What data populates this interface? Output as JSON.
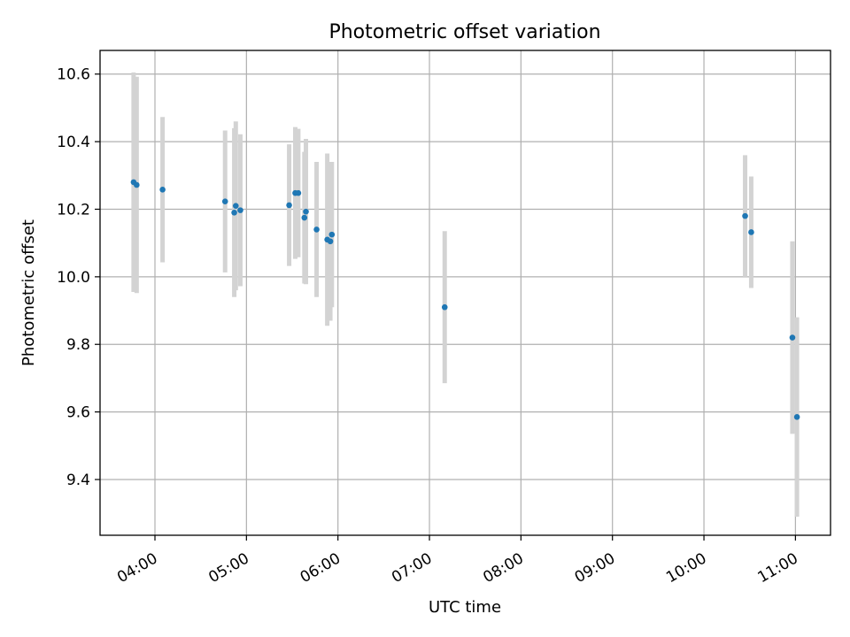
{
  "chart_data": {
    "type": "scatter",
    "title": "Photometric offset variation",
    "xlabel": "UTC time",
    "ylabel": "Photometric offset",
    "x_ticks": [
      "04:00",
      "05:00",
      "06:00",
      "07:00",
      "08:00",
      "09:00",
      "10:00",
      "11:00"
    ],
    "y_ticks": [
      "9.4",
      "9.6",
      "9.8",
      "10.0",
      "10.2",
      "10.4",
      "10.6"
    ],
    "xlim": [
      "03:24",
      "11:23"
    ],
    "ylim": [
      9.235,
      10.67
    ],
    "grid": true,
    "colors": {
      "point": "#1f77b4",
      "errorbar": "#d3d3d3"
    },
    "points": [
      {
        "x": "03:46",
        "y": 10.28,
        "yerr": 0.325
      },
      {
        "x": "03:48",
        "y": 10.272,
        "yerr": 0.32
      },
      {
        "x": "04:05",
        "y": 10.258,
        "yerr": 0.215
      },
      {
        "x": "04:46",
        "y": 10.223,
        "yerr": 0.21
      },
      {
        "x": "04:52",
        "y": 10.19,
        "yerr": 0.25
      },
      {
        "x": "04:53",
        "y": 10.21,
        "yerr": 0.25
      },
      {
        "x": "04:56",
        "y": 10.197,
        "yerr": 0.225
      },
      {
        "x": "05:28",
        "y": 10.212,
        "yerr": 0.18
      },
      {
        "x": "05:32",
        "y": 10.248,
        "yerr": 0.195
      },
      {
        "x": "05:34",
        "y": 10.248,
        "yerr": 0.19
      },
      {
        "x": "05:38",
        "y": 10.175,
        "yerr": 0.195
      },
      {
        "x": "05:39",
        "y": 10.193,
        "yerr": 0.215
      },
      {
        "x": "05:46",
        "y": 10.14,
        "yerr": 0.2
      },
      {
        "x": "05:53",
        "y": 10.11,
        "yerr": 0.255
      },
      {
        "x": "05:55",
        "y": 10.105,
        "yerr": 0.235
      },
      {
        "x": "05:56",
        "y": 10.125,
        "yerr": 0.215
      },
      {
        "x": "07:10",
        "y": 9.91,
        "yerr": 0.225
      },
      {
        "x": "10:27",
        "y": 10.18,
        "yerr": 0.18
      },
      {
        "x": "10:31",
        "y": 10.132,
        "yerr": 0.165
      },
      {
        "x": "10:58",
        "y": 9.82,
        "yerr": 0.285
      },
      {
        "x": "11:01",
        "y": 9.585,
        "yerr": 0.295
      }
    ]
  }
}
